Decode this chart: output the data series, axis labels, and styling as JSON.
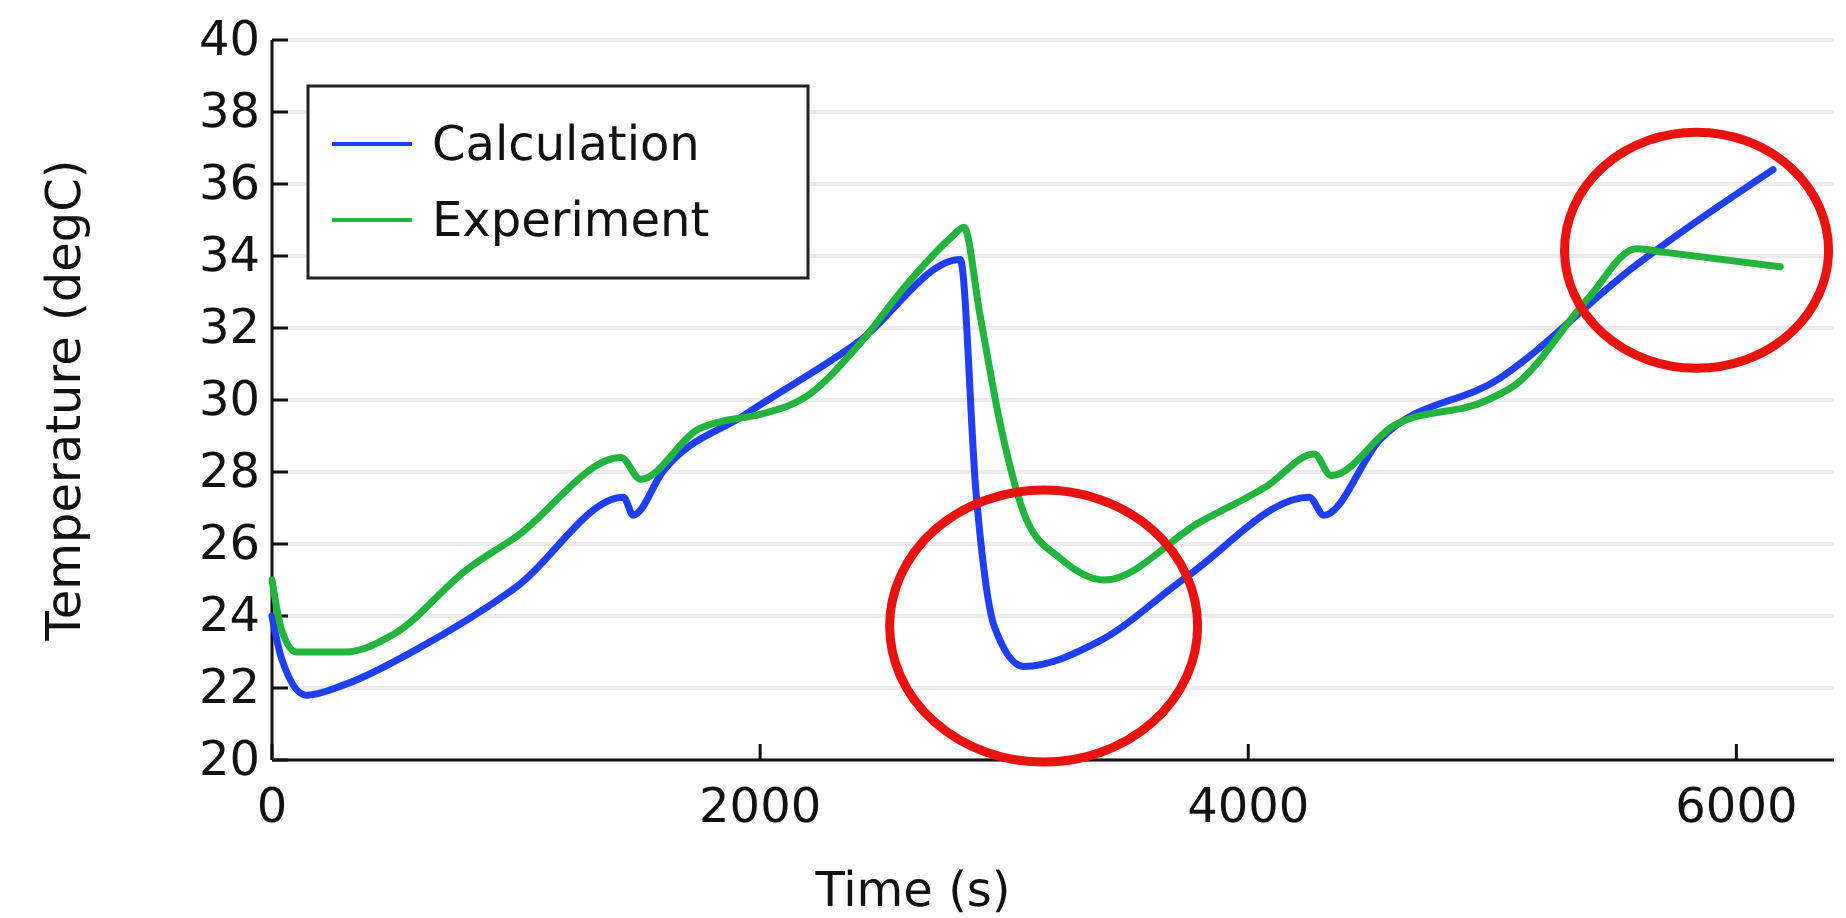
{
  "chart_data": {
    "type": "line",
    "xlabel": "Time (s)",
    "ylabel": "Temperature (degC)",
    "xlim": [
      0,
      6400
    ],
    "ylim": [
      20,
      40
    ],
    "xticks": [
      0,
      2000,
      4000,
      6000
    ],
    "yticks": [
      20,
      22,
      24,
      26,
      28,
      30,
      32,
      34,
      36,
      38,
      40
    ],
    "grid": "y",
    "legend": "top left",
    "line_style": "solid",
    "marker": "none",
    "series": [
      {
        "name": "Calculation",
        "color": "#1f3ff5",
        "x": [
          0,
          40,
          140,
          300,
          600,
          1000,
          1440,
          1480,
          1600,
          1940,
          2400,
          2820,
          2885,
          2960,
          3080,
          3390,
          3750,
          4250,
          4310,
          4540,
          5030,
          5580,
          6150
        ],
        "values": [
          24.0,
          22.8,
          21.8,
          22.1,
          23.1,
          24.8,
          27.3,
          26.8,
          28.0,
          29.6,
          31.6,
          33.9,
          27.4,
          23.7,
          22.6,
          23.3,
          25.1,
          27.3,
          26.8,
          28.9,
          30.6,
          33.7,
          36.4
        ]
      },
      {
        "name": "Experiment",
        "color": "#22b43c",
        "x": [
          0,
          40,
          100,
          300,
          500,
          800,
          1000,
          1430,
          1510,
          1750,
          1840,
          2000,
          2190,
          2400,
          2600,
          2780,
          2835,
          2900,
          2985,
          3090,
          3230,
          3410,
          3800,
          4075,
          4270,
          4340,
          4600,
          4980,
          5090,
          5390,
          5590,
          5710,
          6180
        ],
        "values": [
          25.0,
          23.6,
          23.0,
          23.0,
          23.5,
          25.3,
          26.2,
          28.4,
          27.8,
          29.2,
          29.4,
          29.6,
          30.1,
          31.5,
          33.2,
          34.5,
          34.8,
          32.4,
          29.3,
          26.7,
          25.6,
          25.0,
          26.6,
          27.6,
          28.5,
          27.9,
          29.3,
          30.0,
          30.4,
          32.8,
          34.2,
          34.1,
          33.7
        ]
      }
    ]
  }
}
